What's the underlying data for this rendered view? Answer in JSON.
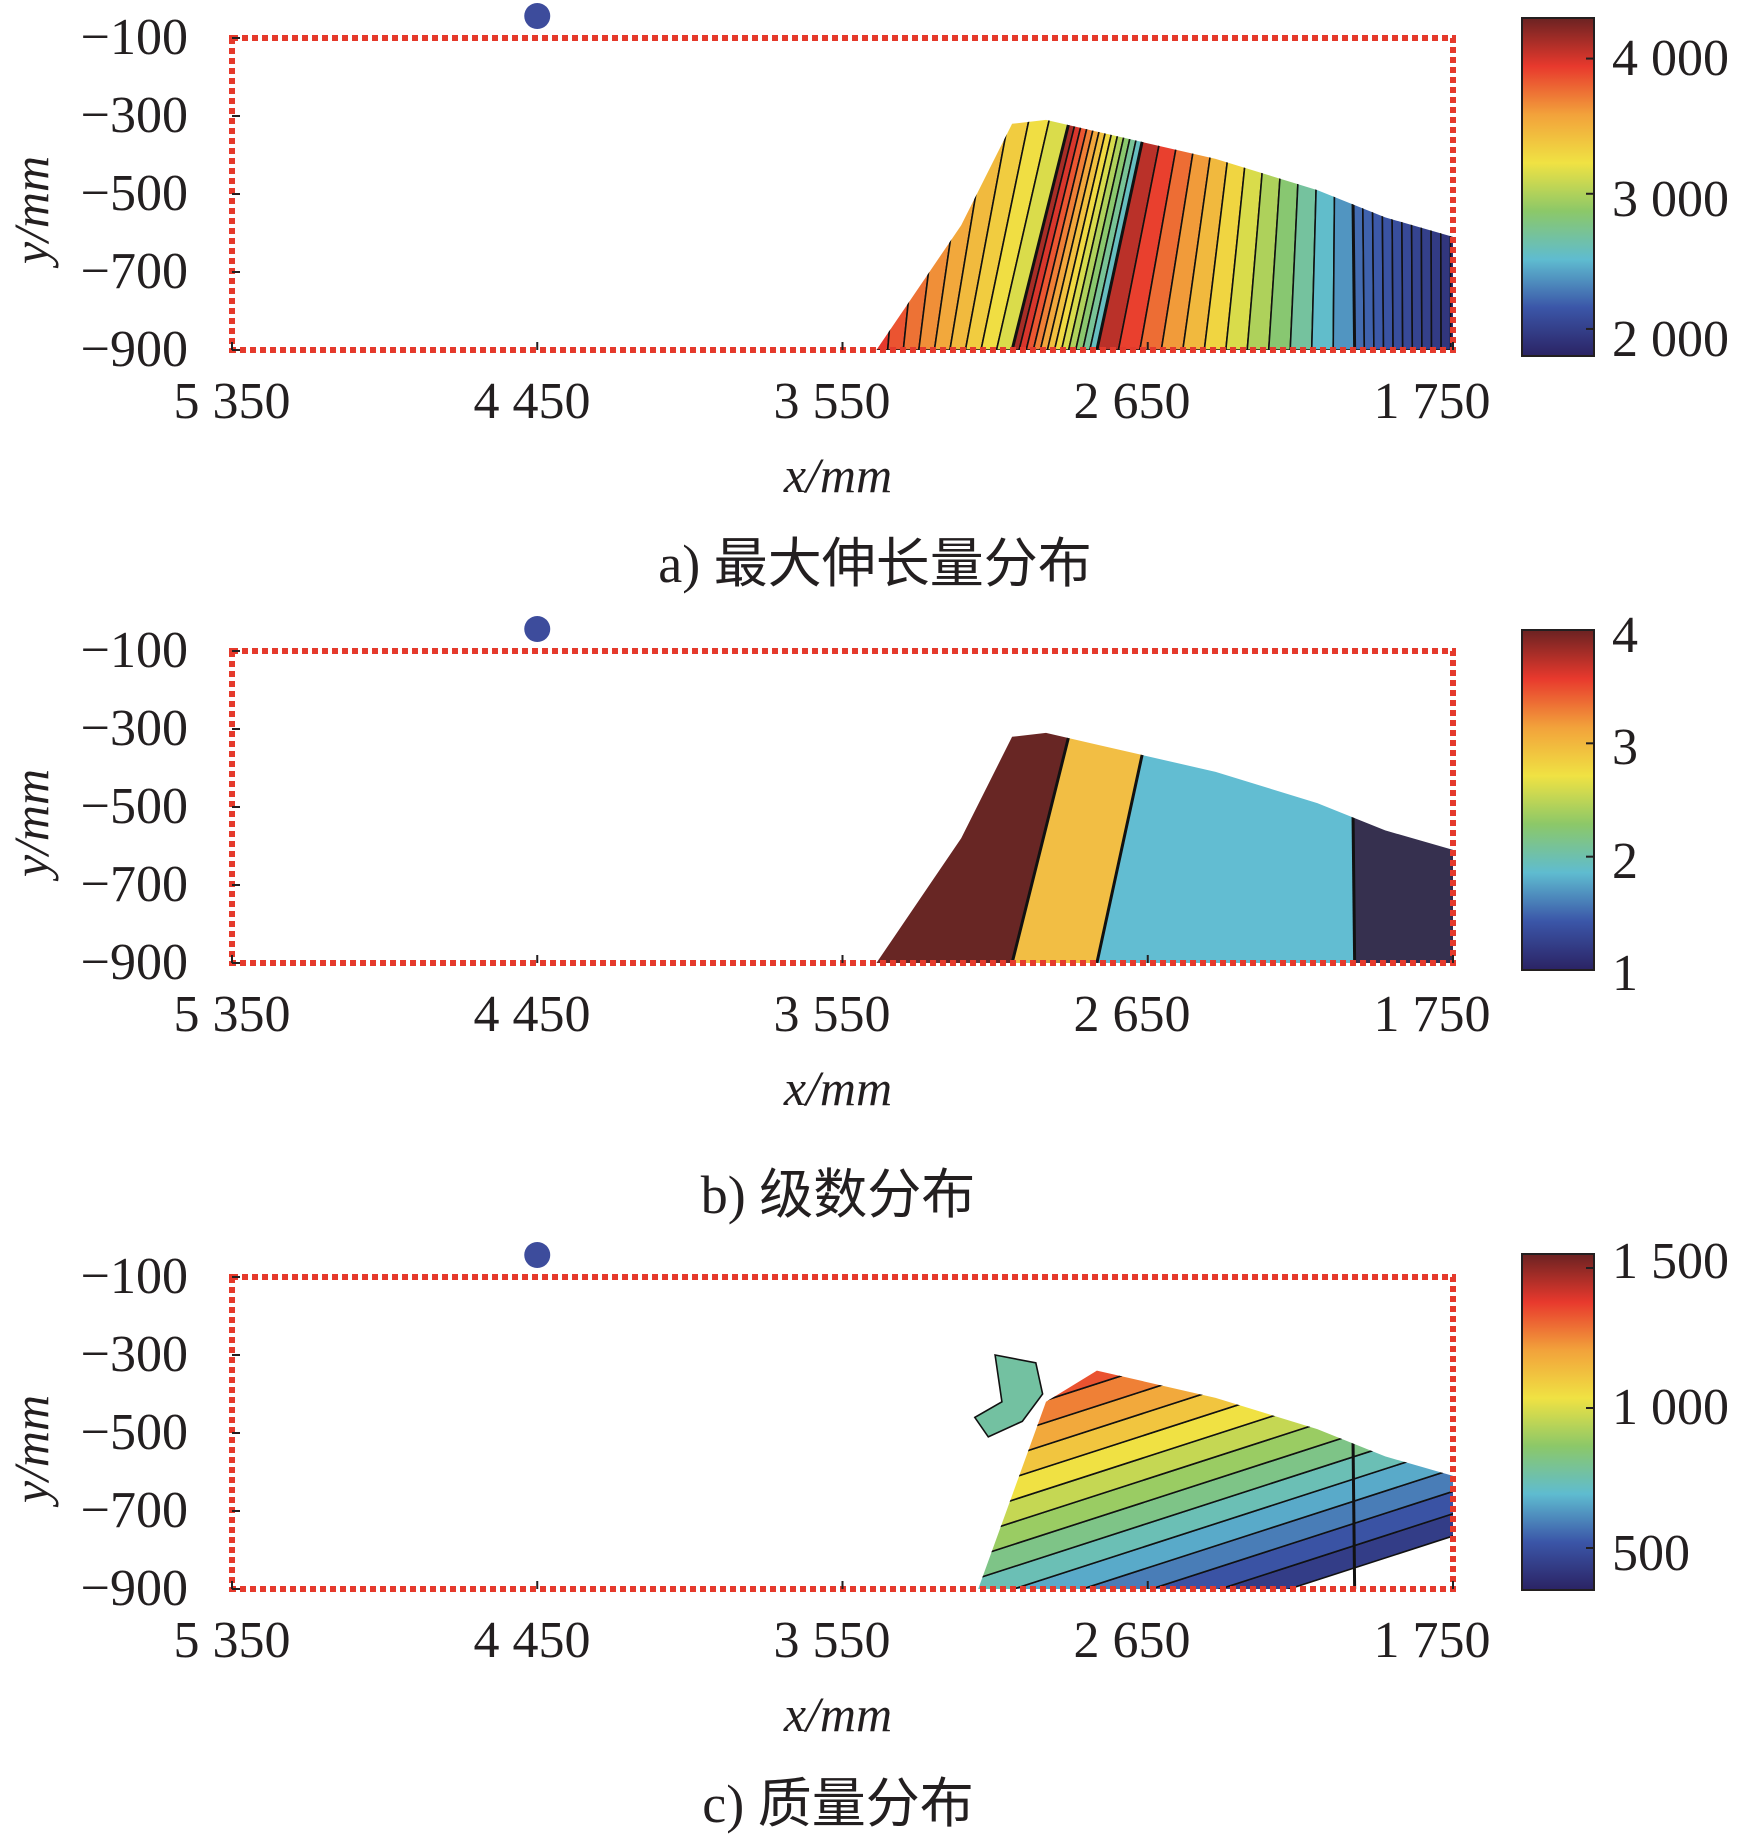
{
  "colors": {
    "frame": "#e53a2c",
    "marker": "#3d4c9c",
    "contour": "#111111",
    "text": "#231f20",
    "jet": [
      "#2b2364",
      "#3b56a8",
      "#5fbcd0",
      "#8cc868",
      "#f0e243",
      "#f2a23b",
      "#e8392d",
      "#6b2222"
    ],
    "stage_colors": [
      "#36304f",
      "#62bdd2",
      "#f2be44",
      "#682624"
    ]
  },
  "chart_data": [
    {
      "id": "a",
      "type": "heatmap",
      "caption": "a) 最大伸长量分布",
      "xlabel": "x/mm",
      "ylabel": "y/mm",
      "xticks": [
        "5 350",
        "4 450",
        "3 550",
        "2 650",
        "1 750"
      ],
      "xtick_values": [
        5350,
        4450,
        3550,
        2650,
        1750
      ],
      "xlim": [
        5350,
        1750
      ],
      "yticks": [
        "−100",
        "−300",
        "−500",
        "−700",
        "−900"
      ],
      "ytick_values": [
        -100,
        -300,
        -500,
        -700,
        -900
      ],
      "ylim": [
        -900,
        -100
      ],
      "colorbar": {
        "ticks": [
          "4 000",
          "3 000",
          "2 000"
        ],
        "tick_values": [
          4000,
          3000,
          2000
        ],
        "range": [
          1800,
          4300
        ]
      },
      "marker": {
        "x": 4450,
        "y": -40
      },
      "frame_x": [
        5350,
        1750
      ],
      "frame_y": [
        -900,
        -100
      ],
      "region": [
        [
          3450,
          -900
        ],
        [
          3200,
          -580
        ],
        [
          3050,
          -320
        ],
        [
          2950,
          -310
        ],
        [
          2800,
          -340
        ],
        [
          2450,
          -410
        ],
        [
          2150,
          -490
        ],
        [
          1950,
          -560
        ],
        [
          1750,
          -610
        ],
        [
          1750,
          -900
        ]
      ],
      "boundaries": [
        [
          3050,
          2820
        ],
        [
          2800,
          2600
        ],
        [
          2040,
          2050
        ]
      ],
      "stage_values": [
        [
          3100,
          4300
        ],
        [
          2500,
          4200
        ],
        [
          2300,
          4150
        ],
        [
          1850,
          2250
        ]
      ],
      "contour_levels": 12,
      "value_gradient": "x"
    },
    {
      "id": "b",
      "type": "heatmap",
      "caption": "b) 级数分布",
      "xlabel": "x/mm",
      "ylabel": "y/mm",
      "xticks": [
        "5 350",
        "4 450",
        "3 550",
        "2 650",
        "1 750"
      ],
      "xtick_values": [
        5350,
        4450,
        3550,
        2650,
        1750
      ],
      "xlim": [
        5350,
        1750
      ],
      "yticks": [
        "−100",
        "−300",
        "−500",
        "−700",
        "−900"
      ],
      "ytick_values": [
        -100,
        -300,
        -500,
        -700,
        -900
      ],
      "ylim": [
        -900,
        -100
      ],
      "colorbar": {
        "ticks": [
          "4",
          "3",
          "2",
          "1"
        ],
        "tick_values": [
          4,
          3,
          2,
          1
        ],
        "range": [
          1,
          4
        ]
      },
      "marker": {
        "x": 4450,
        "y": -40
      },
      "frame_x": [
        5350,
        1750
      ],
      "frame_y": [
        -900,
        -100
      ],
      "region": [
        [
          3450,
          -900
        ],
        [
          3200,
          -580
        ],
        [
          3050,
          -320
        ],
        [
          2950,
          -310
        ],
        [
          2800,
          -340
        ],
        [
          2450,
          -410
        ],
        [
          2150,
          -490
        ],
        [
          1950,
          -560
        ],
        [
          1750,
          -610
        ],
        [
          1750,
          -900
        ]
      ],
      "boundaries": [
        [
          3050,
          2820
        ],
        [
          2800,
          2600
        ],
        [
          2040,
          2050
        ]
      ],
      "stage_levels": [
        4,
        3,
        2,
        1
      ]
    },
    {
      "id": "c",
      "type": "heatmap",
      "caption": "c) 质量分布",
      "xlabel": "x/mm",
      "ylabel": "y/mm",
      "xticks": [
        "5 350",
        "4 450",
        "3 550",
        "2 650",
        "1 750"
      ],
      "xtick_values": [
        5350,
        4450,
        3550,
        2650,
        1750
      ],
      "xlim": [
        5350,
        1750
      ],
      "yticks": [
        "−100",
        "−300",
        "−500",
        "−700",
        "−900"
      ],
      "ytick_values": [
        -100,
        -300,
        -500,
        -700,
        -900
      ],
      "ylim": [
        -900,
        -100
      ],
      "colorbar": {
        "ticks": [
          "1 500",
          "1 000",
          "500"
        ],
        "tick_values": [
          1500,
          1000,
          500
        ],
        "range": [
          350,
          1550
        ]
      },
      "marker": {
        "x": 4450,
        "y": -40
      },
      "frame_x": [
        5350,
        1750
      ],
      "frame_y": [
        -900,
        -100
      ],
      "region": [
        [
          3150,
          -900
        ],
        [
          2950,
          -420
        ],
        [
          2800,
          -340
        ],
        [
          2450,
          -410
        ],
        [
          2150,
          -490
        ],
        [
          1950,
          -560
        ],
        [
          1750,
          -610
        ],
        [
          1750,
          -900
        ]
      ],
      "fragment": [
        [
          3100,
          -300
        ],
        [
          2980,
          -320
        ],
        [
          2960,
          -400
        ],
        [
          3020,
          -470
        ],
        [
          3120,
          -510
        ],
        [
          3160,
          -460
        ],
        [
          3080,
          -420
        ]
      ],
      "boundaries": [
        [
          2040,
          2050
        ]
      ],
      "value_range_bottom": [
        400,
        900
      ],
      "value_range_top": [
        700,
        1450
      ],
      "contour_levels": 14,
      "value_gradient": "diagonal"
    }
  ]
}
